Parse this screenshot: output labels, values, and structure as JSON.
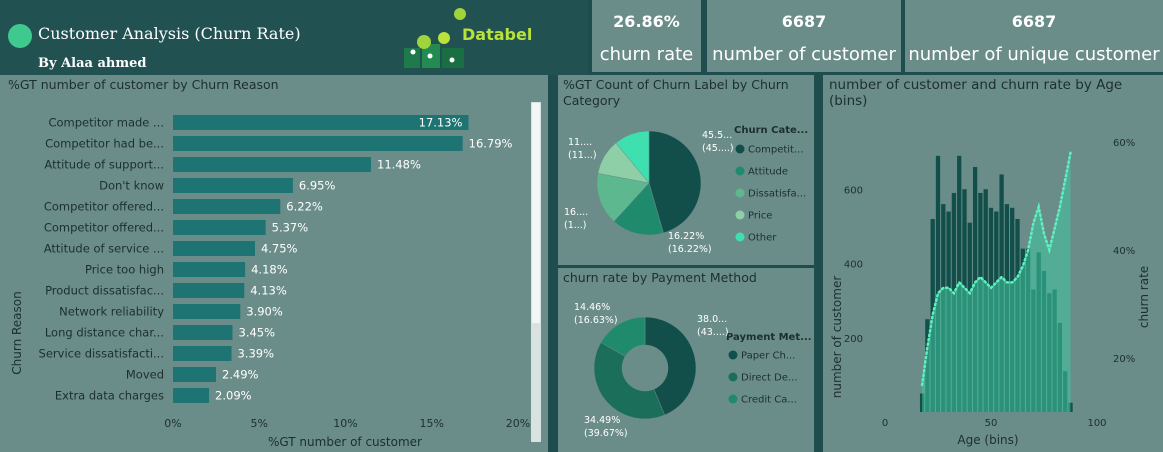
{
  "header": {
    "title": "Customer Analysis (Churn Rate)",
    "author": "By Alaa ahmed",
    "logo_text": "Databel"
  },
  "kpis": [
    {
      "value": "26.86%",
      "label": "churn rate"
    },
    {
      "value": "6687",
      "label": "number of customer"
    },
    {
      "value": "6687",
      "label": "number of unique customer"
    }
  ],
  "colors": {
    "teal_dark": "#124f4b",
    "teal_mid": "#1f8a6c",
    "teal_light": "#5db88f",
    "teal_pale": "#8fcfa8",
    "mint": "#3fe0b0",
    "bar": "#1e7373",
    "panel": "#6b8d89"
  },
  "chart_data": [
    {
      "type": "bar",
      "orientation": "horizontal",
      "title": "%GT number of customer by Churn Reason",
      "xlabel": "%GT number of customer",
      "ylabel": "Churn Reason",
      "xlim": [
        0,
        20
      ],
      "xticks": [
        "0%",
        "5%",
        "10%",
        "15%",
        "20%"
      ],
      "categories": [
        "Competitor made ...",
        "Competitor had be...",
        "Attitude of support...",
        "Don't know",
        "Competitor offered...",
        "Competitor offered...",
        "Attitude of service ...",
        "Price too high",
        "Product dissatisfac...",
        "Network reliability",
        "Long distance char...",
        "Service dissatisfacti...",
        "Moved",
        "Extra data charges"
      ],
      "values": [
        17.13,
        16.79,
        11.48,
        6.95,
        6.22,
        5.37,
        4.75,
        4.18,
        4.13,
        3.9,
        3.45,
        3.39,
        2.49,
        2.09
      ],
      "labels": [
        "17.13%",
        "16.79%",
        "11.48%",
        "6.95%",
        "6.22%",
        "5.37%",
        "4.75%",
        "4.18%",
        "4.13%",
        "3.90%",
        "3.45%",
        "3.39%",
        "2.49%",
        "2.09%"
      ]
    },
    {
      "type": "pie",
      "title": "%GT Count of Churn Label by Churn Category",
      "legend_title": "Churn Cate...",
      "categories": [
        "Competit...",
        "Attitude",
        "Dissatisfa...",
        "Price",
        "Other"
      ],
      "values": [
        45.5,
        16.22,
        16.2,
        11.0,
        11.0
      ],
      "labels": [
        "45.5... (45....)",
        "16.22% (16.22%)",
        "16.... (1...)",
        "",
        "11.... (11...)"
      ]
    },
    {
      "type": "pie",
      "donut": true,
      "title": "churn rate by Payment Method",
      "legend_title": "Payment Met...",
      "categories": [
        "Paper Ch...",
        "Direct De...",
        "Credit Ca..."
      ],
      "values": [
        38.0,
        34.49,
        14.46
      ],
      "labels": [
        "38.0... (43....)",
        "34.49% (39.67%)",
        "14.46% (16.63%)"
      ]
    },
    {
      "type": "bar+line",
      "title": "number of customer and churn rate by Age (bins)",
      "xlabel": "Age (bins)",
      "ylabel": "number of customer",
      "y2label": "churn rate",
      "xlim": [
        0,
        100
      ],
      "ylim": [
        0,
        800
      ],
      "y2lim": [
        10,
        65
      ],
      "xticks": [
        "0",
        "50",
        "100"
      ],
      "yticks": [
        "200",
        "400",
        "600"
      ],
      "y2ticks": [
        "20%",
        "40%",
        "60%"
      ],
      "x": [
        17.5,
        20,
        22.5,
        25,
        27.5,
        30,
        32.5,
        35,
        37.5,
        40,
        42.5,
        45,
        47.5,
        50,
        52.5,
        55,
        57.5,
        60,
        62.5,
        65,
        67.5,
        70,
        72.5,
        75,
        77.5,
        80,
        82.5,
        85,
        87.5
      ],
      "counts": [
        50,
        250,
        520,
        690,
        560,
        540,
        590,
        690,
        600,
        510,
        660,
        590,
        600,
        550,
        540,
        640,
        560,
        550,
        520,
        440,
        440,
        330,
        430,
        380,
        320,
        330,
        240,
        110,
        25
      ],
      "churn_rate": [
        15,
        22,
        28,
        32,
        33,
        33,
        32,
        34,
        33,
        32,
        34,
        35,
        34,
        33,
        34,
        35,
        34,
        34,
        35,
        37,
        40,
        45,
        48,
        43,
        40,
        44,
        48,
        53,
        58
      ]
    }
  ]
}
